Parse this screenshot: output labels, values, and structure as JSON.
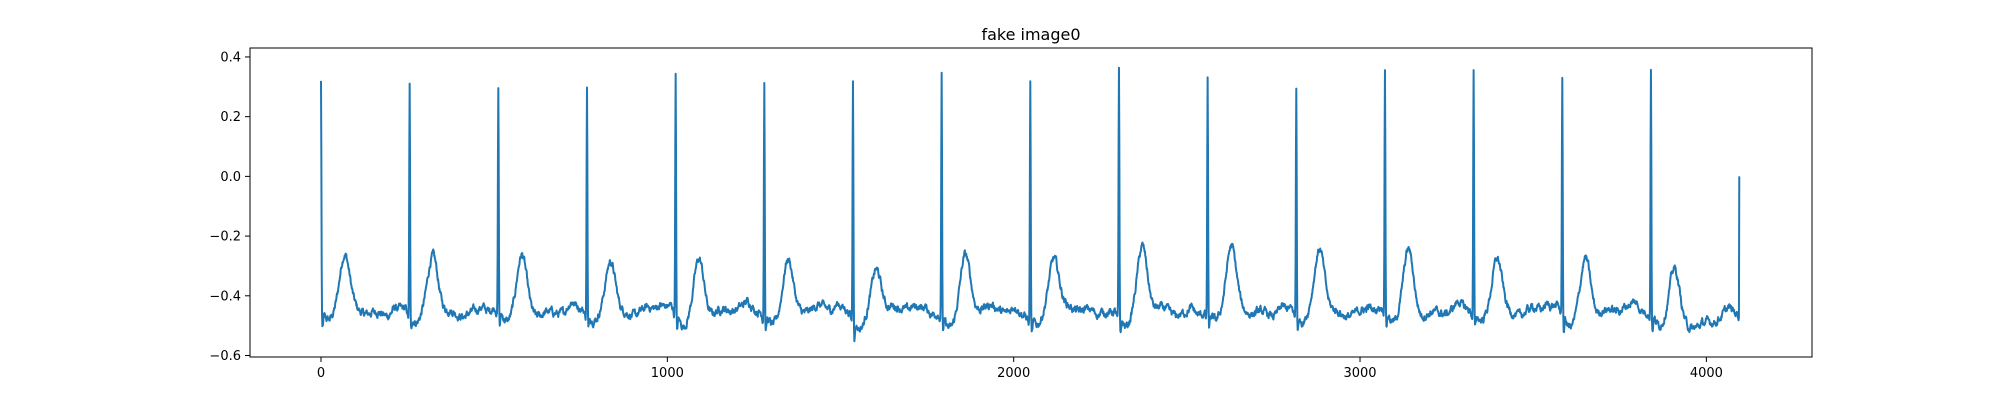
{
  "chart_data": {
    "type": "line",
    "title": "fake image0",
    "xlabel": "",
    "ylabel": "",
    "xlim": [
      -205,
      4305
    ],
    "ylim": [
      -0.605,
      0.43
    ],
    "x_ticks": [
      0,
      1000,
      2000,
      3000,
      4000
    ],
    "x_tick_labels": [
      "0",
      "1000",
      "2000",
      "3000",
      "4000"
    ],
    "y_ticks": [
      -0.6,
      -0.4,
      -0.2,
      0.0,
      0.2,
      0.4
    ],
    "y_tick_labels": [
      "−0.6",
      "−0.4",
      "−0.2",
      "0.0",
      "0.2",
      "0.4"
    ],
    "grid": false,
    "legend": "none",
    "series": [
      {
        "color": "#1f77b4",
        "n_samples": 4096,
        "baseline": -0.45,
        "end_value": 0.0,
        "beats": [
          {
            "r_index": 0,
            "r_peak": 0.32,
            "t_peak": -0.27
          },
          {
            "r_index": 256,
            "r_peak": 0.32,
            "t_peak": -0.27
          },
          {
            "r_index": 512,
            "r_peak": 0.3,
            "t_peak": -0.27
          },
          {
            "r_index": 768,
            "r_peak": 0.32,
            "t_peak": -0.27
          },
          {
            "r_index": 1024,
            "r_peak": 0.355,
            "t_peak": -0.27
          },
          {
            "r_index": 1280,
            "r_peak": 0.34,
            "t_peak": -0.265
          },
          {
            "r_index": 1536,
            "r_peak": 0.36,
            "t_peak": -0.3
          },
          {
            "r_index": 1792,
            "r_peak": 0.37,
            "t_peak": -0.27
          },
          {
            "r_index": 2048,
            "r_peak": 0.35,
            "t_peak": -0.275
          },
          {
            "r_index": 2304,
            "r_peak": 0.375,
            "t_peak": -0.25
          },
          {
            "r_index": 2560,
            "r_peak": 0.35,
            "t_peak": -0.245
          },
          {
            "r_index": 2816,
            "r_peak": 0.32,
            "t_peak": -0.245
          },
          {
            "r_index": 3072,
            "r_peak": 0.375,
            "t_peak": -0.25
          },
          {
            "r_index": 3328,
            "r_peak": 0.365,
            "t_peak": -0.26
          },
          {
            "r_index": 3584,
            "r_peak": 0.355,
            "t_peak": -0.265
          },
          {
            "r_index": 3840,
            "r_peak": 0.38,
            "t_peak": -0.29
          }
        ]
      }
    ]
  }
}
